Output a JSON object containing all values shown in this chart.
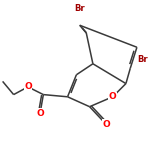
{
  "background_color": "#ffffff",
  "bond_color": "#3a3a3a",
  "atom_colors": {
    "O": "#ff0000",
    "Br": "#a00000"
  },
  "line_width": 1.1,
  "figsize": [
    1.5,
    1.5
  ],
  "dpi": 100,
  "font_size_O": 6.5,
  "font_size_Br": 6.0
}
